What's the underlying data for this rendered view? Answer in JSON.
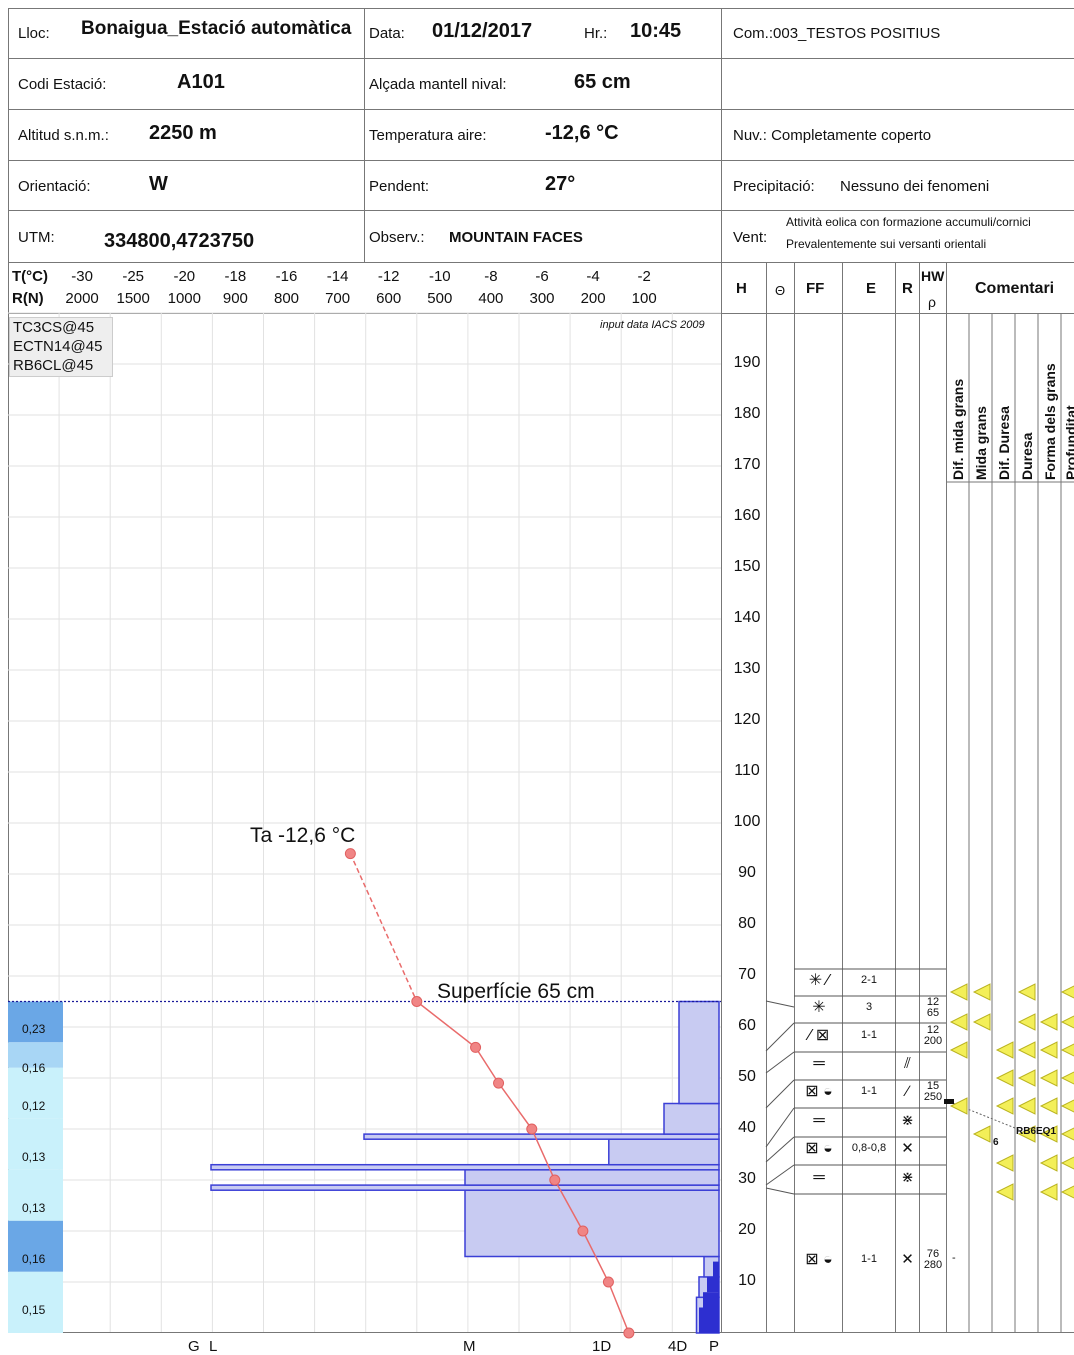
{
  "header": {
    "lloc_label": "Lloc:",
    "lloc_value": "Bonaigua_Estació automàtica",
    "data_label": "Data:",
    "data_value": "01/12/2017",
    "hr_label": "Hr.:",
    "hr_value": "10:45",
    "com_value": "Com.:003_TESTOS POSITIUS",
    "codi_label": "Codi Estació:",
    "codi_value": "A101",
    "alcada_label": "Alçada mantell nival:",
    "alcada_value": "65 cm",
    "altitud_label": "Altitud s.n.m.:",
    "altitud_value": "2250 m",
    "temp_label": "Temperatura aire:",
    "temp_value": "-12,6 °C",
    "nuv_value": "Nuv.: Completamente coperto",
    "orient_label": "Orientació:",
    "orient_value": "W",
    "pendent_label": "Pendent:",
    "pendent_value": "27°",
    "precip_label": "Precipitació:",
    "precip_value": "Nessuno dei fenomeni",
    "utm_label": "UTM:",
    "utm_value": "334800,4723750",
    "observ_label": "Observ.:",
    "observ_value": "MOUNTAIN FACES",
    "vent_label": "Vent:",
    "vent_line1": "Attività eolica con formazione  accumuli/cornici",
    "vent_line2": "Prevalentemente sui versanti orientali"
  },
  "axis_header": {
    "t_label": "T(°C)",
    "r_label": "R(N)",
    "t_ticks": [
      "-30",
      "-25",
      "-20",
      "-18",
      "-16",
      "-14",
      "-12",
      "-10",
      "-8",
      "-6",
      "-4",
      "-2"
    ],
    "r_ticks": [
      "2000",
      "1500",
      "1000",
      "900",
      "800",
      "700",
      "600",
      "500",
      "400",
      "300",
      "200",
      "100"
    ],
    "col_h": "H",
    "col_theta": "Θ",
    "col_ff": "FF",
    "col_e": "E",
    "col_r": "R",
    "col_hw": "HW",
    "col_rho": "ρ",
    "col_comentari": "Comentari"
  },
  "tests_box": [
    "TC3CS@45",
    "ECTN14@45",
    "RB6CL@45"
  ],
  "source_note": "input data IACS 2009",
  "air_temp_label": "Ta  -12,6 °C",
  "surface_label": "Superfície  65 cm",
  "height_ticks": [
    "190",
    "180",
    "170",
    "160",
    "150",
    "140",
    "130",
    "120",
    "110",
    "100",
    "90",
    "80",
    "70",
    "60",
    "50",
    "40",
    "30",
    "20",
    "10"
  ],
  "densities": [
    "0,23",
    "0,16",
    "0,12",
    "0,13",
    "0,13",
    "0,16",
    "0,15"
  ],
  "hardness_axis": [
    "G",
    "L",
    "M",
    "1D",
    "4D",
    "P"
  ],
  "comment_columns": [
    "Dif. mida grans",
    "Mida grans",
    "Dif. Duresa",
    "Duresa",
    "Forma dels grans",
    "Profunditat"
  ],
  "layers": [
    {
      "ff": "✳ ∕",
      "e": "2-1",
      "r": "",
      "hw": ""
    },
    {
      "ff": "✳",
      "e": "3",
      "r": "",
      "hw": "12\n65"
    },
    {
      "ff": "∕ ⊠",
      "e": "1-1",
      "r": "",
      "hw": "12\n200"
    },
    {
      "ff": "═",
      "e": "",
      "r": "⫽",
      "hw": ""
    },
    {
      "ff": "⊠ ◒",
      "e": "1-1",
      "r": "∕",
      "hw": "15\n250"
    },
    {
      "ff": "═",
      "e": "",
      "r": "⋇",
      "hw": ""
    },
    {
      "ff": "⊠ ◒",
      "e": "0,8-0,8",
      "r": "✕",
      "hw": ""
    },
    {
      "ff": "═",
      "e": "",
      "r": "⋇",
      "hw": ""
    },
    {
      "ff": "⊠ ◒",
      "e": "1-1",
      "r": "✕",
      "hw": "76\n280"
    }
  ],
  "hw_values": [
    "12",
    "65",
    "12",
    "200",
    "15",
    "250",
    "76",
    "280"
  ],
  "rb_label": "RB6EQ1",
  "six_label": "6",
  "dash_label": "-",
  "chart_data": {
    "type": "line",
    "temperature_profile": {
      "x_unit": "°C",
      "y_unit": "cm",
      "points": [
        {
          "h": 94,
          "t": -12.6
        },
        {
          "h": 65,
          "t": -10.0
        },
        {
          "h": 56,
          "t": -7.7
        },
        {
          "h": 49,
          "t": -6.8
        },
        {
          "h": 40,
          "t": -5.5
        },
        {
          "h": 30,
          "t": -4.6
        },
        {
          "h": 20,
          "t": -3.5
        },
        {
          "h": 10,
          "t": -2.5
        },
        {
          "h": 0,
          "t": -1.7
        }
      ]
    },
    "hardness_profile_R_N": [
      {
        "from": 0,
        "to": 7,
        "r": 45
      },
      {
        "from": 7,
        "to": 11,
        "r": 40
      },
      {
        "from": 11,
        "to": 15,
        "r": 30
      },
      {
        "from": 15,
        "to": 28,
        "r": 500
      },
      {
        "from": 28,
        "to": 29,
        "r": 1000
      },
      {
        "from": 29,
        "to": 32,
        "r": 500
      },
      {
        "from": 32,
        "to": 33,
        "r": 1000
      },
      {
        "from": 33,
        "to": 38,
        "r": 220
      },
      {
        "from": 38,
        "to": 39,
        "r": 700
      },
      {
        "from": 39,
        "to": 45,
        "r": 110
      },
      {
        "from": 45,
        "to": 65,
        "r": 80
      }
    ],
    "snow_depth_cm": 65,
    "air_temperature_c": -12.6
  }
}
